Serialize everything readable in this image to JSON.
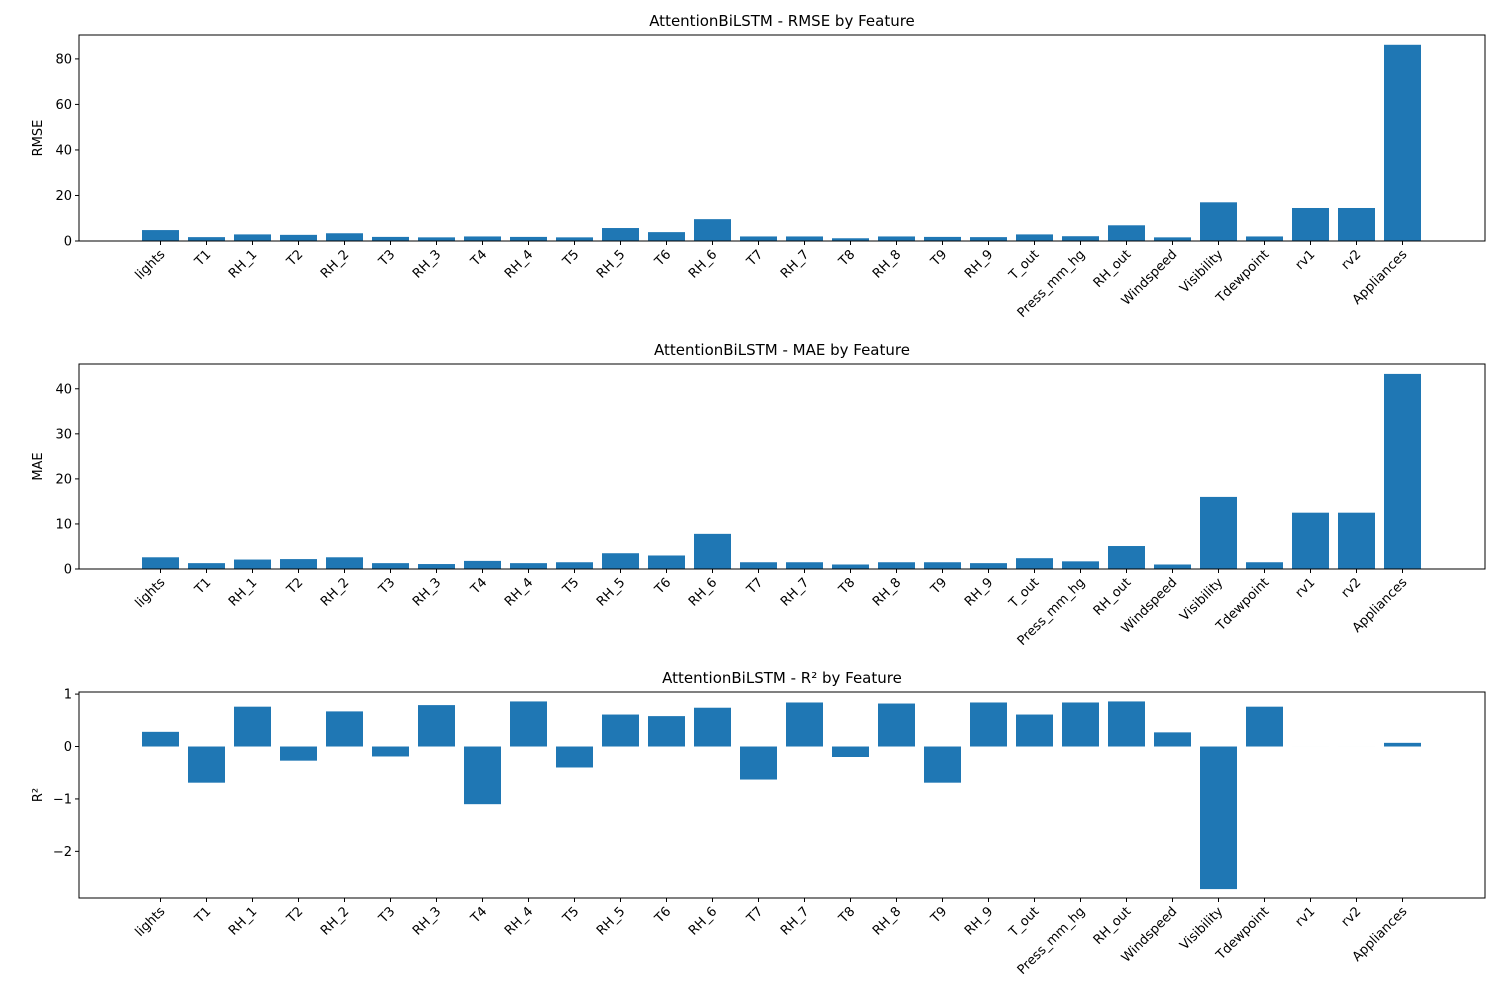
{
  "chart_data": [
    {
      "type": "bar",
      "title": "AttentionBiLSTM - RMSE by Feature",
      "xlabel": "",
      "ylabel": "RMSE",
      "ylim": [
        0,
        90.5
      ],
      "yticks": [
        0,
        20,
        40,
        60,
        80
      ],
      "color": "#1f77b4",
      "categories": [
        "lights",
        "T1",
        "RH_1",
        "T2",
        "RH_2",
        "T3",
        "RH_3",
        "T4",
        "RH_4",
        "T5",
        "RH_5",
        "T6",
        "RH_6",
        "T7",
        "RH_7",
        "T8",
        "RH_8",
        "T9",
        "RH_9",
        "T_out",
        "Press_mm_hg",
        "RH_out",
        "Windspeed",
        "Visibility",
        "Tdewpoint",
        "rv1",
        "rv2",
        "Appliances"
      ],
      "values": [
        4.8,
        1.7,
        2.9,
        2.7,
        3.4,
        1.8,
        1.6,
        2.0,
        1.8,
        1.6,
        5.7,
        3.9,
        9.6,
        2.0,
        2.0,
        1.2,
        2.0,
        1.8,
        1.7,
        2.9,
        2.1,
        6.9,
        1.6,
        17.0,
        2.0,
        14.5,
        14.5,
        86.2
      ]
    },
    {
      "type": "bar",
      "title": "AttentionBiLSTM - MAE by Feature",
      "xlabel": "",
      "ylabel": "MAE",
      "ylim": [
        0,
        45.5
      ],
      "yticks": [
        0,
        10,
        20,
        30,
        40
      ],
      "color": "#1f77b4",
      "categories": [
        "lights",
        "T1",
        "RH_1",
        "T2",
        "RH_2",
        "T3",
        "RH_3",
        "T4",
        "RH_4",
        "T5",
        "RH_5",
        "T6",
        "RH_6",
        "T7",
        "RH_7",
        "T8",
        "RH_8",
        "T9",
        "RH_9",
        "T_out",
        "Press_mm_hg",
        "RH_out",
        "Windspeed",
        "Visibility",
        "Tdewpoint",
        "rv1",
        "rv2",
        "Appliances"
      ],
      "values": [
        2.6,
        1.3,
        2.1,
        2.2,
        2.6,
        1.3,
        1.1,
        1.8,
        1.3,
        1.5,
        3.5,
        3.0,
        7.8,
        1.5,
        1.5,
        1.0,
        1.5,
        1.5,
        1.3,
        2.4,
        1.7,
        5.1,
        1.0,
        16.0,
        1.5,
        12.5,
        12.5,
        43.3
      ]
    },
    {
      "type": "bar",
      "title": "AttentionBiLSTM - R² by Feature",
      "xlabel": "",
      "ylabel": "R²",
      "ylim": [
        -2.89,
        1.04
      ],
      "yticks": [
        -2,
        -1,
        0,
        1
      ],
      "ytick_labels": [
        "−2",
        "−1",
        "0",
        "1"
      ],
      "color": "#1f77b4",
      "categories": [
        "lights",
        "T1",
        "RH_1",
        "T2",
        "RH_2",
        "T3",
        "RH_3",
        "T4",
        "RH_4",
        "T5",
        "RH_5",
        "T6",
        "RH_6",
        "T7",
        "RH_7",
        "T8",
        "RH_8",
        "T9",
        "RH_9",
        "T_out",
        "Press_mm_hg",
        "RH_out",
        "Windspeed",
        "Visibility",
        "Tdewpoint",
        "rv1",
        "rv2",
        "Appliances"
      ],
      "values": [
        0.28,
        -0.69,
        0.76,
        -0.27,
        0.67,
        -0.19,
        0.79,
        -1.1,
        0.86,
        -0.4,
        0.61,
        0.58,
        0.74,
        -0.63,
        0.84,
        -0.2,
        0.82,
        -0.69,
        0.84,
        0.61,
        0.84,
        0.86,
        0.27,
        -2.72,
        0.76,
        0.0,
        0.0,
        0.07
      ]
    }
  ]
}
